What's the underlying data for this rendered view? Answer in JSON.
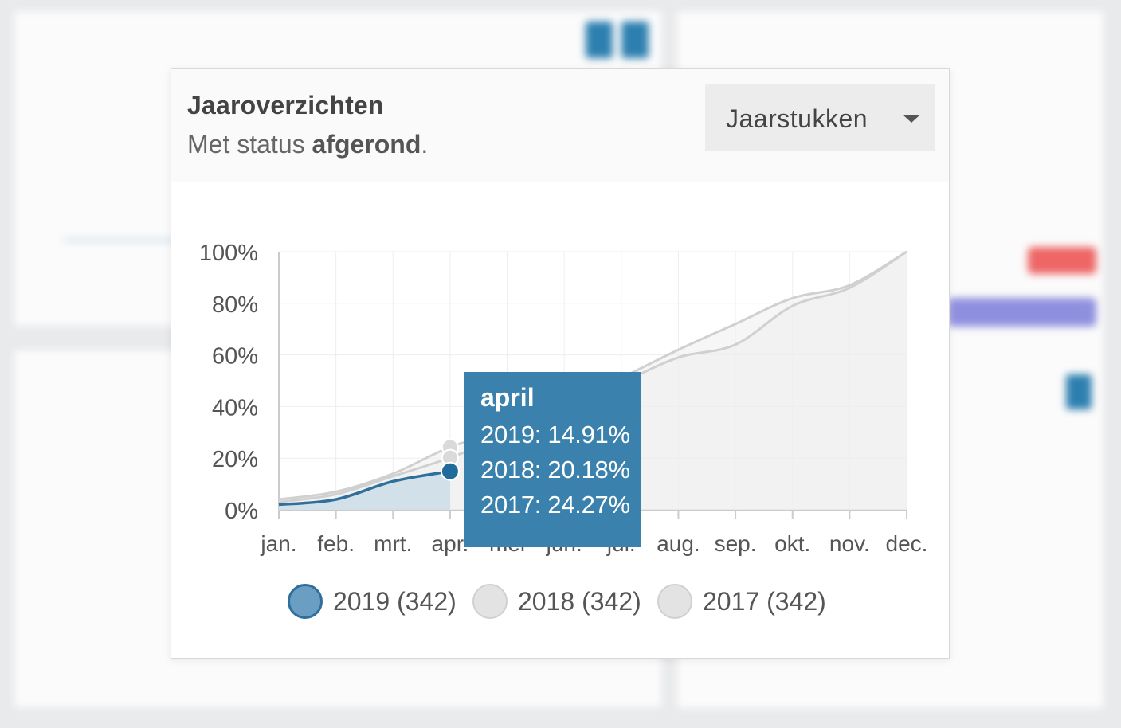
{
  "header": {
    "title": "Jaaroverzichten",
    "subtitle_prefix": "Met status ",
    "subtitle_status": "afgerond",
    "subtitle_suffix": ".",
    "dropdown_value": "Jaarstukken"
  },
  "tooltip": {
    "title": "april",
    "lines": [
      "2019: 14.91%",
      "2018: 20.18%",
      "2017: 24.27%"
    ]
  },
  "legend": [
    {
      "label": "2019 (342)",
      "color": "#3a82ad"
    },
    {
      "label": "2018 (342)",
      "color": "#dcdcdc"
    },
    {
      "label": "2017 (342)",
      "color": "#dcdcdc"
    }
  ],
  "colors": {
    "series_2019": "#2e6f9c",
    "series_2019_fill": "#ccdde9",
    "series_other": "#d0d0d0",
    "series_other_fill": "#efefef",
    "tooltip_bg": "#3a82ad"
  },
  "chart_data": {
    "type": "line",
    "categories": [
      "jan.",
      "feb.",
      "mrt.",
      "apr.",
      "mei",
      "jun.",
      "jul.",
      "aug.",
      "sep.",
      "okt.",
      "nov.",
      "dec."
    ],
    "ylim": [
      0,
      100
    ],
    "ytick_labels": [
      "0%",
      "20%",
      "40%",
      "60%",
      "80%",
      "100%"
    ],
    "grid": true,
    "legend_position": "bottom",
    "highlight_category": "apr.",
    "series": [
      {
        "name": "2019 (342)",
        "values": [
          2,
          4,
          11,
          14.91,
          null,
          null,
          null,
          null,
          null,
          null,
          null,
          null
        ]
      },
      {
        "name": "2018 (342)",
        "values": [
          3,
          6,
          13,
          20.18,
          29,
          38,
          49,
          59,
          64,
          79,
          86,
          100
        ]
      },
      {
        "name": "2017 (342)",
        "values": [
          4,
          7,
          14,
          24.27,
          31,
          40,
          51,
          62,
          72,
          82,
          87,
          100
        ]
      }
    ]
  }
}
